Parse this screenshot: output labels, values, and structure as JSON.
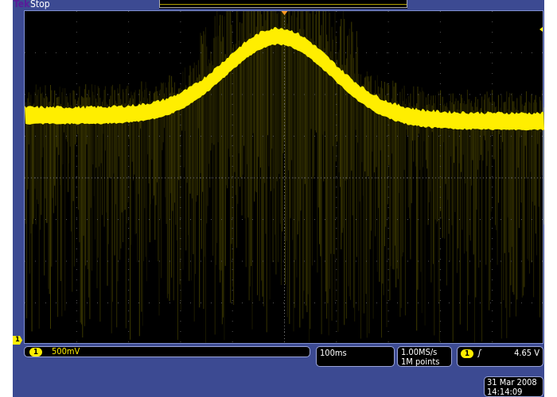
{
  "header": {
    "brand": "Tek",
    "state": "Stop"
  },
  "channel": {
    "number": "1",
    "scale": "500mV",
    "color": "#ffee00"
  },
  "timebase": {
    "scale": "100ms"
  },
  "acquisition": {
    "sample_rate": "1.00MS/s",
    "record_length": "1M points"
  },
  "trigger": {
    "source": "1",
    "slope_icon": "rising-edge-icon",
    "slope": "ʃ",
    "level": "4.65 V"
  },
  "datetime": {
    "date": "31 Mar 2008",
    "time": "14:14:09"
  },
  "colors": {
    "frame": "#3c4a92",
    "trace": "#ffee00",
    "screen": "#000000"
  }
}
